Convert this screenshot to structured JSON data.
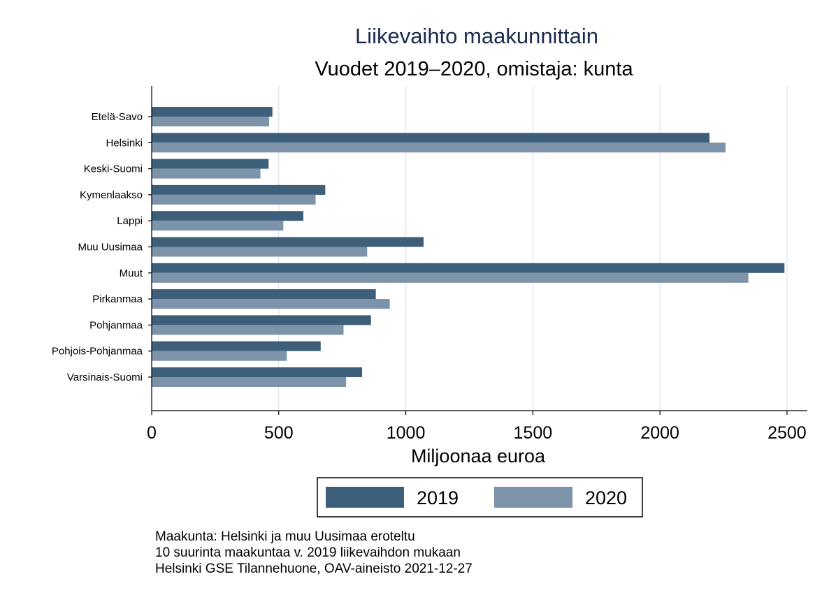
{
  "chart_data": {
    "type": "bar",
    "orientation": "horizontal",
    "title": "Liikevaihto maakunnittain",
    "subtitle": "Vuodet 2019–2020, omistaja: kunta",
    "xlabel": "Miljoonaa euroa",
    "ylabel": "",
    "xlim": [
      0,
      2580
    ],
    "xticks": [
      0,
      500,
      1000,
      1500,
      2000,
      2500
    ],
    "grid": true,
    "legend_position": "bottom",
    "categories": [
      "Etelä-Savo",
      "Helsinki",
      "Keski-Suomi",
      "Kymenlaakso",
      "Lappi",
      "Muu Uusimaa",
      "Muut",
      "Pirkanmaa",
      "Pohjanmaa",
      "Pohjois-Pohjanmaa",
      "Varsinais-Suomi"
    ],
    "series": [
      {
        "name": "2019",
        "color": "#3e5f7a",
        "values": [
          475,
          2195,
          460,
          683,
          597,
          1070,
          2490,
          882,
          863,
          665,
          828
        ]
      },
      {
        "name": "2020",
        "color": "#7d93aa",
        "values": [
          462,
          2258,
          428,
          645,
          518,
          848,
          2348,
          937,
          755,
          532,
          765
        ]
      }
    ],
    "notes": [
      "Maakunta: Helsinki ja muu Uusimaa eroteltu",
      "10 suurinta maakuntaa v. 2019 liikevaihdon mukaan",
      "Helsinki GSE Tilannehuone, OAV-aineisto 2021-12-27"
    ]
  }
}
